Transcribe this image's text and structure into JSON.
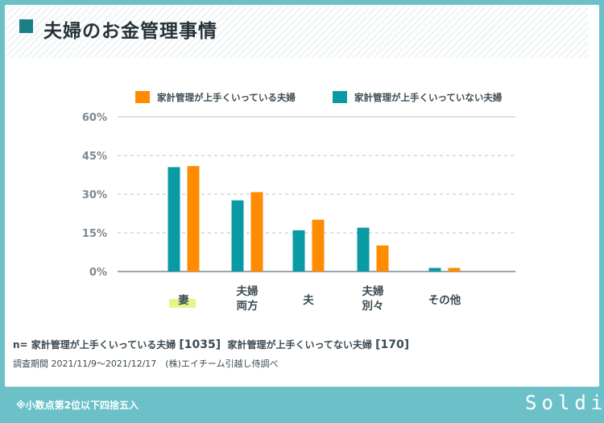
{
  "title": "夫婦のお金管理事情",
  "notes": {
    "n_prefix": "n=",
    "n_good_label": "家計管理が上手くいっている夫婦",
    "n_good_count": "[1035]",
    "n_bad_label": "家計管理が上手くいってない夫婦",
    "n_bad_count": "[170]",
    "survey": "調査期間 2021/11/9〜2021/12/17　(株)エイチーム引越し侍調べ"
  },
  "footer": {
    "note": "※小数点第2位以下四捨五入",
    "logo": "Soldi"
  },
  "colors": {
    "orange": "#ff8c00",
    "teal": "#0a9aa3",
    "frame": "#6cc1c9",
    "highlight": "#e7f48a"
  },
  "chart_data": {
    "type": "bar",
    "categories": [
      [
        "妻"
      ],
      [
        "夫婦",
        "両方"
      ],
      [
        "夫"
      ],
      [
        "夫婦",
        "別々"
      ],
      [
        "その他"
      ]
    ],
    "series": [
      {
        "name": "家計管理が上手くいっていない夫婦",
        "color": "#0a9aa3",
        "values": [
          40.5,
          27.6,
          16.0,
          17.0,
          1.4
        ]
      },
      {
        "name": "家計管理が上手くいっている夫婦",
        "color": "#ff8c00",
        "values": [
          40.9,
          30.8,
          20.1,
          10.1,
          1.4
        ]
      }
    ],
    "legend_order": [
      1,
      0
    ],
    "ylim": [
      0,
      60
    ],
    "yticks": [
      0,
      15,
      30,
      45,
      60
    ],
    "ytick_unit": "%",
    "grid": true,
    "legend_position": "top-right"
  }
}
